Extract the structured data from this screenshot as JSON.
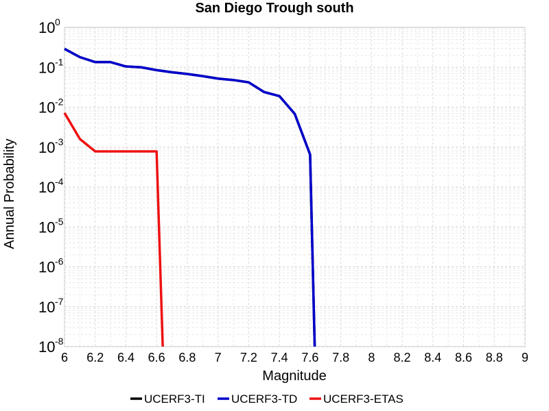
{
  "chart_data": {
    "type": "line",
    "title": "San Diego Trough south",
    "xlabel": "Magnitude",
    "ylabel": "Annual Probability",
    "x_scale": "linear",
    "y_scale": "log",
    "xlim": [
      6,
      9
    ],
    "ylim": [
      1e-08,
      1
    ],
    "grid": true,
    "legend_position": "bottom",
    "x_ticks": [
      "6",
      "6.2",
      "6.4",
      "6.6",
      "6.8",
      "7",
      "7.2",
      "7.4",
      "7.6",
      "7.8",
      "8",
      "8.2",
      "8.4",
      "8.6",
      "8.8",
      "9"
    ],
    "y_ticks": [
      {
        "base": "10",
        "exp": "0"
      },
      {
        "base": "10",
        "exp": "-1"
      },
      {
        "base": "10",
        "exp": "-2"
      },
      {
        "base": "10",
        "exp": "-3"
      },
      {
        "base": "10",
        "exp": "-4"
      },
      {
        "base": "10",
        "exp": "-5"
      },
      {
        "base": "10",
        "exp": "-6"
      },
      {
        "base": "10",
        "exp": "-7"
      },
      {
        "base": "10",
        "exp": "-8"
      }
    ],
    "series": [
      {
        "name": "UCERF3-TI",
        "color": "#000000",
        "x": [
          6.0,
          6.1,
          6.2,
          6.3,
          6.4,
          6.5,
          6.6,
          6.7,
          6.8,
          6.9,
          7.0,
          7.1,
          7.2,
          7.3,
          7.4,
          7.5,
          7.6,
          7.63
        ],
        "y": [
          0.29,
          0.18,
          0.135,
          0.135,
          0.105,
          0.1,
          0.085,
          0.075,
          0.068,
          0.06,
          0.052,
          0.048,
          0.042,
          0.024,
          0.019,
          0.0068,
          0.00065,
          1e-08
        ]
      },
      {
        "name": "UCERF3-TD",
        "color": "#0000cc",
        "x": [
          6.0,
          6.1,
          6.2,
          6.3,
          6.4,
          6.5,
          6.6,
          6.7,
          6.8,
          6.9,
          7.0,
          7.1,
          7.2,
          7.3,
          7.4,
          7.5,
          7.6,
          7.63
        ],
        "y": [
          0.29,
          0.18,
          0.135,
          0.135,
          0.105,
          0.1,
          0.085,
          0.075,
          0.068,
          0.06,
          0.052,
          0.048,
          0.042,
          0.024,
          0.019,
          0.0068,
          0.00065,
          1e-08
        ]
      },
      {
        "name": "UCERF3-ETAS",
        "color": "#ee1111",
        "x": [
          6.0,
          6.1,
          6.2,
          6.3,
          6.4,
          6.5,
          6.6,
          6.64
        ],
        "y": [
          0.0072,
          0.0016,
          0.00078,
          0.00078,
          0.00078,
          0.00078,
          0.00078,
          1e-08
        ]
      }
    ]
  }
}
